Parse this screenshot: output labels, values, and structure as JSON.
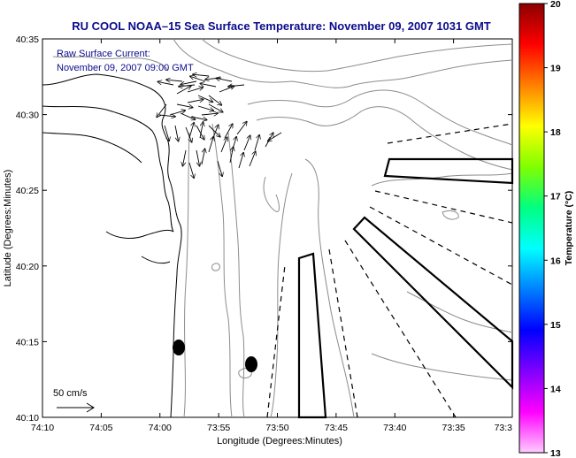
{
  "title": "RU COOL  NOAA–15  Sea Surface Temperature:  November 09, 2007 1031 GMT",
  "current_label": "Raw Surface Current:",
  "current_time": "November 09, 2007 09:00 GMT",
  "scale_label": "50 cm/s",
  "x_axis": {
    "label": "Longitude (Degrees:Minutes)",
    "ticks": [
      "74:10",
      "74:05",
      "74:00",
      "73:55",
      "73:50",
      "73:45",
      "73:40",
      "73:35",
      "73:3"
    ]
  },
  "y_axis": {
    "label": "Latitude (Degrees:Minutes)",
    "ticks": [
      "40:35",
      "40:30",
      "40:25",
      "40:20",
      "40:15",
      "40:10"
    ]
  },
  "colorbar": {
    "label": "Temperature (°C)",
    "ticks": [
      "20",
      "19",
      "18",
      "17",
      "16",
      "15",
      "14",
      "13"
    ],
    "colors": [
      "#8b0000",
      "#ff0000",
      "#ff8000",
      "#ffff00",
      "#80ff00",
      "#00ff80",
      "#00ffff",
      "#0080ff",
      "#0000ff",
      "#8000ff",
      "#ff00ff",
      "#ffccff"
    ]
  }
}
